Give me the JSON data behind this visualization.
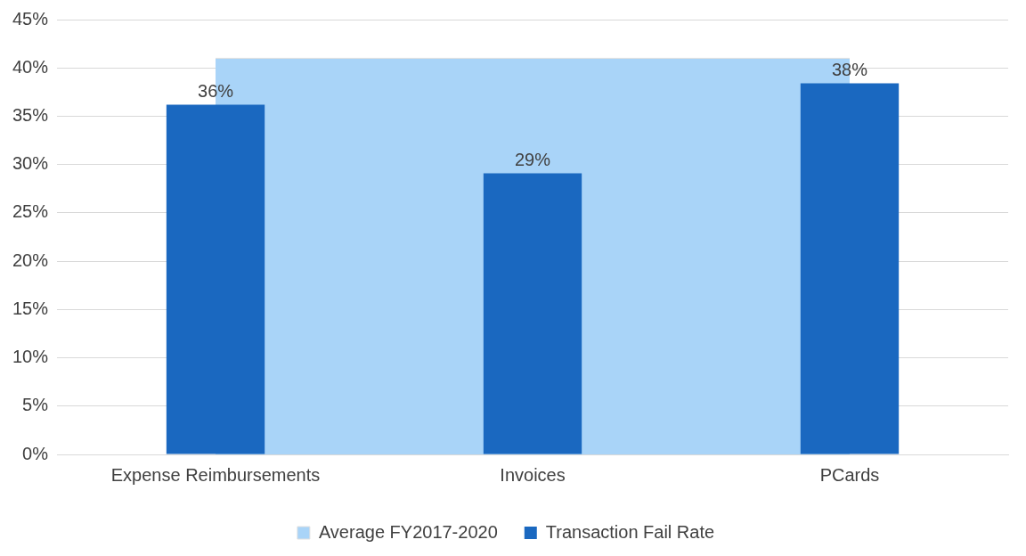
{
  "chart_data": {
    "type": "bar",
    "categories": [
      "Expense Reimbursements",
      "Invoices",
      "PCards"
    ],
    "series": [
      {
        "name": "Average FY2017-2020",
        "type": "area",
        "color": "#a9d4f8",
        "values": [
          41,
          41,
          41
        ]
      },
      {
        "name": "Transaction Fail Rate",
        "color": "#1a68c0",
        "values": [
          36.2,
          29.1,
          38.4
        ],
        "value_labels": [
          "36%",
          "29%",
          "38%"
        ]
      }
    ],
    "ylim": [
      0,
      45
    ],
    "yticks": [
      {
        "value": 0,
        "label": "0%"
      },
      {
        "value": 5,
        "label": "5%"
      },
      {
        "value": 10,
        "label": "10%"
      },
      {
        "value": 15,
        "label": "15%"
      },
      {
        "value": 20,
        "label": "20%"
      },
      {
        "value": 25,
        "label": "25%"
      },
      {
        "value": 30,
        "label": "30%"
      },
      {
        "value": 35,
        "label": "35%"
      },
      {
        "value": 40,
        "label": "40%"
      },
      {
        "value": 45,
        "label": "45%"
      }
    ],
    "grid": "y",
    "legend": "bottom"
  }
}
